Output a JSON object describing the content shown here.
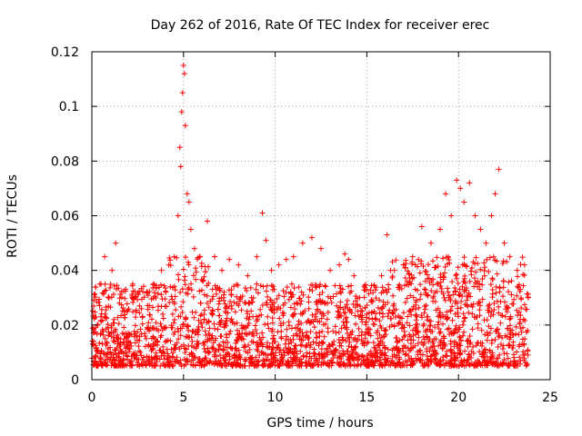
{
  "chart_data": {
    "type": "scatter",
    "title": "Day 262 of 2016, Rate Of TEC Index for receiver erec",
    "xlabel": "GPS time / hours",
    "ylabel": "ROTI / TECUs",
    "xlim": [
      0,
      25
    ],
    "ylim": [
      0,
      0.12
    ],
    "xticks": [
      0,
      5,
      10,
      15,
      20,
      25
    ],
    "xtick_labels": [
      "0",
      "5",
      "10",
      "15",
      "20",
      "25"
    ],
    "yticks": [
      0,
      0.02,
      0.04,
      0.06,
      0.08,
      0.1,
      0.12
    ],
    "ytick_labels": [
      "0",
      "0.02",
      "0.04",
      "0.06",
      "0.08",
      "0.1",
      "0.12"
    ],
    "grid": true,
    "legend": "none",
    "marker": "+",
    "marker_color": "#ff0000",
    "series": [
      {
        "name": "ROTI",
        "points": [
          [
            0.1,
            0.014
          ],
          [
            0.3,
            0.02
          ],
          [
            0.5,
            0.035
          ],
          [
            0.7,
            0.045
          ],
          [
            0.9,
            0.03
          ],
          [
            1.1,
            0.04
          ],
          [
            1.3,
            0.05
          ],
          [
            1.5,
            0.028
          ],
          [
            1.8,
            0.025
          ],
          [
            2.2,
            0.03
          ],
          [
            2.6,
            0.027
          ],
          [
            3.0,
            0.032
          ],
          [
            3.4,
            0.035
          ],
          [
            3.8,
            0.04
          ],
          [
            4.2,
            0.042
          ],
          [
            4.5,
            0.045
          ],
          [
            4.7,
            0.06
          ],
          [
            4.8,
            0.085
          ],
          [
            4.85,
            0.078
          ],
          [
            4.9,
            0.098
          ],
          [
            4.95,
            0.105
          ],
          [
            5.0,
            0.115
          ],
          [
            5.05,
            0.112
          ],
          [
            5.1,
            0.093
          ],
          [
            5.2,
            0.068
          ],
          [
            5.3,
            0.065
          ],
          [
            5.4,
            0.055
          ],
          [
            5.6,
            0.048
          ],
          [
            5.9,
            0.045
          ],
          [
            6.3,
            0.058
          ],
          [
            6.7,
            0.045
          ],
          [
            7.1,
            0.04
          ],
          [
            7.5,
            0.044
          ],
          [
            8.0,
            0.042
          ],
          [
            8.5,
            0.038
          ],
          [
            9.0,
            0.045
          ],
          [
            9.3,
            0.061
          ],
          [
            9.5,
            0.051
          ],
          [
            9.8,
            0.04
          ],
          [
            10.2,
            0.042
          ],
          [
            10.6,
            0.044
          ],
          [
            11.0,
            0.045
          ],
          [
            11.5,
            0.05
          ],
          [
            12.0,
            0.052
          ],
          [
            12.5,
            0.048
          ],
          [
            13.0,
            0.04
          ],
          [
            13.5,
            0.042
          ],
          [
            13.8,
            0.046
          ],
          [
            14.0,
            0.044
          ],
          [
            14.3,
            0.038
          ],
          [
            14.6,
            0.03
          ],
          [
            15.0,
            0.024
          ],
          [
            15.4,
            0.025
          ],
          [
            15.8,
            0.038
          ],
          [
            16.1,
            0.053
          ],
          [
            16.5,
            0.04
          ],
          [
            17.0,
            0.042
          ],
          [
            17.5,
            0.045
          ],
          [
            18.0,
            0.056
          ],
          [
            18.5,
            0.05
          ],
          [
            19.0,
            0.055
          ],
          [
            19.3,
            0.068
          ],
          [
            19.6,
            0.06
          ],
          [
            19.9,
            0.073
          ],
          [
            20.1,
            0.07
          ],
          [
            20.3,
            0.065
          ],
          [
            20.6,
            0.072
          ],
          [
            20.9,
            0.06
          ],
          [
            21.2,
            0.055
          ],
          [
            21.5,
            0.05
          ],
          [
            21.8,
            0.06
          ],
          [
            22.0,
            0.068
          ],
          [
            22.2,
            0.077
          ],
          [
            22.5,
            0.05
          ],
          [
            22.8,
            0.045
          ],
          [
            23.2,
            0.04
          ],
          [
            23.6,
            0.042
          ],
          [
            23.8,
            0.03
          ]
        ]
      }
    ]
  }
}
